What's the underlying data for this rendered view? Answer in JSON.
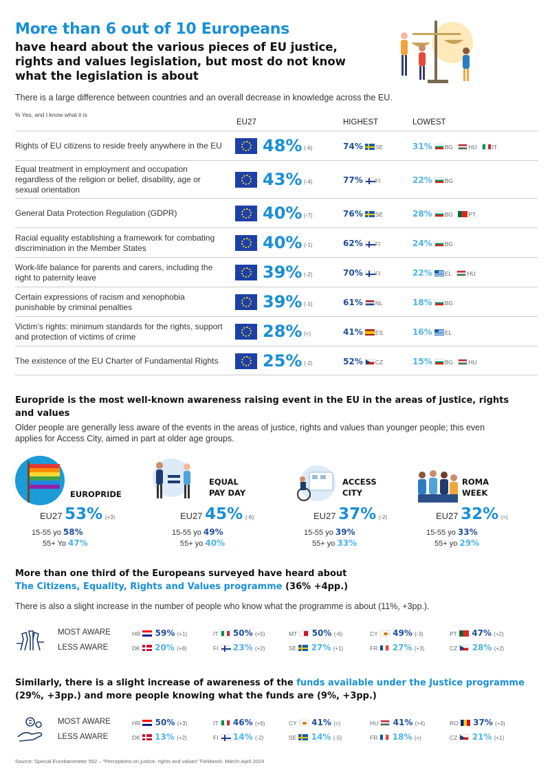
{
  "header": {
    "title": "More than 6 out of 10 Europeans",
    "subtitle": "have heard about the various pieces of EU justice, rights and values legislation, but most do not know what the legislation is about"
  },
  "intro": "There is a large difference between countries and an overall decrease in knowledge across the EU.",
  "table": {
    "note": "% Yes, and I know what it is",
    "col_eu27": "EU27",
    "col_highest": "HIGHEST",
    "col_lowest": "LOWEST",
    "rows": [
      {
        "label": "Rights of EU citizens to reside freely anywhere in the EU",
        "eu27": "48%",
        "change": "(-6)",
        "high": "74%",
        "high_flags": [
          "SE"
        ],
        "low": "31%",
        "low_flags": [
          "BG",
          "HU",
          "IT"
        ]
      },
      {
        "label": "Equal treatment in employment and occupation regardless of the religion or belief, disability, age or sexual orientation",
        "eu27": "43%",
        "change": "(-4)",
        "high": "77%",
        "high_flags": [
          "FI"
        ],
        "low": "22%",
        "low_flags": [
          "BG"
        ]
      },
      {
        "label": "General Data Protection Regulation (GDPR)",
        "eu27": "40%",
        "change": "(-7)",
        "high": "76%",
        "high_flags": [
          "SE"
        ],
        "low": "28%",
        "low_flags": [
          "BG",
          "PT"
        ]
      },
      {
        "label": "Racial equality establishing a framework for combating discrimination in the Member States",
        "eu27": "40%",
        "change": "(-1)",
        "high": "62%",
        "high_flags": [
          "FI"
        ],
        "low": "24%",
        "low_flags": [
          "BG"
        ]
      },
      {
        "label": "Work-life balance for parents and carers, including the right to paternity leave",
        "eu27": "39%",
        "change": "(-2)",
        "high": "70%",
        "high_flags": [
          "FI"
        ],
        "low": "22%",
        "low_flags": [
          "EL",
          "HU"
        ]
      },
      {
        "label": "Certain expressions of racism and xenophobia punishable by criminal penalties",
        "eu27": "39%",
        "change": "(-1)",
        "high": "61%",
        "high_flags": [
          "NL"
        ],
        "low": "18%",
        "low_flags": [
          "BG"
        ]
      },
      {
        "label": "Victim’s rights: minimum standards for the rights, support and protection of victims of crime",
        "eu27": "28%",
        "change": "(=)",
        "high": "41%",
        "high_flags": [
          "ES"
        ],
        "low": "16%",
        "low_flags": [
          "EL"
        ]
      },
      {
        "label": "The existence of the EU Charter of Fundamental Rights",
        "eu27": "25%",
        "change": "(-2)",
        "high": "52%",
        "high_flags": [
          "CZ"
        ],
        "low": "15%",
        "low_flags": [
          "BG",
          "HU"
        ]
      }
    ]
  },
  "events_section": {
    "title": "Europride is the most well-known awareness raising event in the EU in the areas of justice, rights and values",
    "text": "Older people are generally less aware of the events in the areas of justice, rights and values than younger people; this even applies for Access City, aimed in part at older age groups.",
    "eu27_label": "EU27",
    "young_label": "15-55 yo",
    "old_label": "55+ yo",
    "events": [
      {
        "name": "EUROPRIDE",
        "eu27": "53%",
        "change": "(+3)",
        "young": "58%",
        "old": "47%",
        "old_label": "55+ Yo"
      },
      {
        "name": "EQUAL PAY DAY",
        "eu27": "45%",
        "change": "(-6)",
        "young": "49%",
        "old": "40%",
        "old_label": "55+ yo"
      },
      {
        "name": "ACCESS CITY",
        "eu27": "37%",
        "change": "(-2)",
        "young": "39%",
        "old": "33%",
        "old_label": "55+ yo"
      },
      {
        "name": "ROMA WEEK",
        "eu27": "32%",
        "change": "(=)",
        "young": "33%",
        "old": "29%",
        "old_label": "55+ yo"
      }
    ]
  },
  "programme_section": {
    "title_pre": "More than one third of the Europeans surveyed have heard about",
    "title_hl": "The Citizens, Equality, Rights and Values programme",
    "title_post": "(36% +4pp.)",
    "text": "There is also a slight increase in the number of people who know what the programme is about (11%, +3pp.).",
    "most_label": "MOST AWARE",
    "less_label": "LESS AWARE",
    "most": [
      {
        "cc": "HR",
        "val": "59%",
        "d": "(+1)"
      },
      {
        "cc": "IT",
        "val": "50%",
        "d": "(+5)"
      },
      {
        "cc": "MT",
        "val": "50%",
        "d": "(-6)"
      },
      {
        "cc": "CY",
        "val": "49%",
        "d": "(-3)"
      },
      {
        "cc": "PT",
        "val": "47%",
        "d": "(+2)"
      }
    ],
    "less": [
      {
        "cc": "DK",
        "val": "20%",
        "d": "(+8)"
      },
      {
        "cc": "FI",
        "val": "23%",
        "d": "(+2)"
      },
      {
        "cc": "SE",
        "val": "27%",
        "d": "(+1)"
      },
      {
        "cc": "FR",
        "val": "27%",
        "d": "(+3)"
      },
      {
        "cc": "CZ",
        "val": "28%",
        "d": "(+2)"
      }
    ]
  },
  "funds_section": {
    "title_pre": "Similarly, there is a slight increase of awareness of the",
    "title_hl": "funds available under the Justice programme",
    "title_post": "(29%, +3pp.) and more people knowing what the funds are (9%, +3pp.)",
    "most_label": "MOST AWARE",
    "less_label": "LESS AWARE",
    "most": [
      {
        "cc": "HR",
        "val": "50%",
        "d": "(+3)"
      },
      {
        "cc": "IT",
        "val": "46%",
        "d": "(+6)"
      },
      {
        "cc": "CY",
        "val": "41%",
        "d": "(=)"
      },
      {
        "cc": "HU",
        "val": "41%",
        "d": "(+4)"
      },
      {
        "cc": "RO",
        "val": "37%",
        "d": "(+3)"
      }
    ],
    "less": [
      {
        "cc": "DK",
        "val": "13%",
        "d": "(+2)"
      },
      {
        "cc": "FI",
        "val": "14%",
        "d": "(-2)"
      },
      {
        "cc": "SE",
        "val": "14%",
        "d": "(-5)"
      },
      {
        "cc": "FR",
        "val": "18%",
        "d": "(=)"
      },
      {
        "cc": "CZ",
        "val": "21%",
        "d": "(+1)"
      }
    ]
  },
  "source": "Source: Special Eurobarometer 552 – “Perceptions on justice, rights and values” Fieldwork: March-April 2024"
}
